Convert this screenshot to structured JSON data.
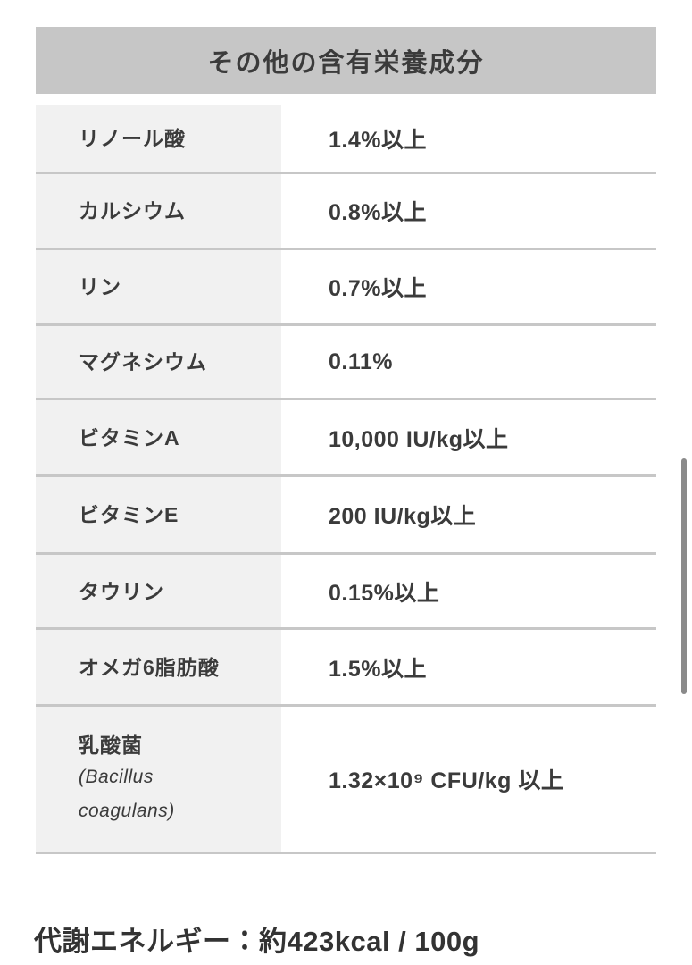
{
  "header": {
    "title": "その他の含有栄養成分"
  },
  "table": {
    "rows": [
      {
        "label": "リノール酸",
        "value": "1.4%以上"
      },
      {
        "label": "カルシウム",
        "value": "0.8%以上"
      },
      {
        "label": "リン",
        "value": "0.7%以上"
      },
      {
        "label": "マグネシウム",
        "value": "0.11%"
      },
      {
        "label": "ビタミンA",
        "value": "10,000 IU/kg以上"
      },
      {
        "label": "ビタミンE",
        "value": "200 IU/kg以上"
      },
      {
        "label": "タウリン",
        "value": "0.15%以上"
      },
      {
        "label": "オメガ6脂肪酸",
        "value": "1.5%以上"
      },
      {
        "label": "乳酸菌",
        "sublabel_line1": "(Bacillus",
        "sublabel_line2": "coagulans)",
        "value": "1.32×10⁹ CFU/kg 以上"
      }
    ]
  },
  "footer": {
    "energy_text": "代謝エネルギー：約423kcal / 100g"
  },
  "colors": {
    "header_bg": "#c6c6c6",
    "label_column_bg": "#f1f1f1",
    "separator": "#c7c7c7",
    "text": "#3b3b3b",
    "scrollbar_thumb": "#8a8a8a",
    "page_bg": "#ffffff"
  }
}
